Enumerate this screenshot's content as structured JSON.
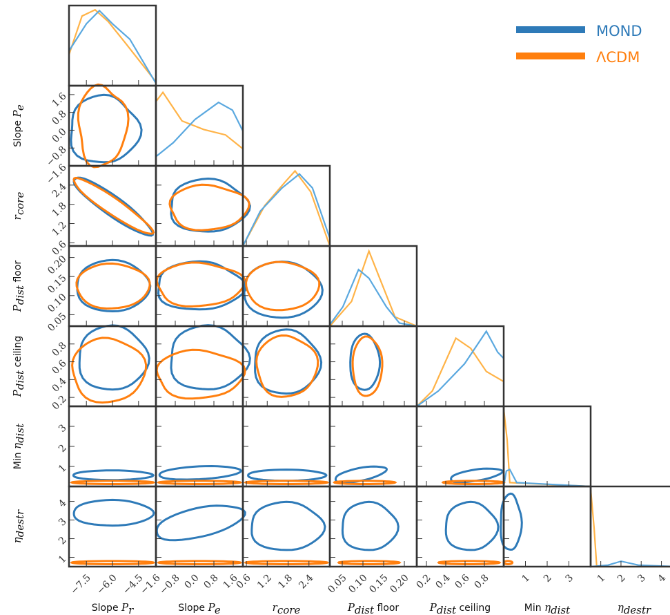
{
  "chart_data": {
    "type": "corner",
    "parameters": [
      {
        "key": "slope_pr",
        "label_sans": "Slope ",
        "label_math": "P",
        "label_sub": "r",
        "label_after": "",
        "ticks": [
          "−7.5",
          "−6.0",
          "−4.5"
        ],
        "tick_values": [
          -7.5,
          -6.0,
          -4.5
        ],
        "range": [
          -8.5,
          -3.5
        ]
      },
      {
        "key": "slope_pe",
        "label_sans": "Slope ",
        "label_math": "P",
        "label_sub": "e",
        "label_after": "",
        "ticks": [
          "−1.6",
          "−0.8",
          "0.0",
          "0.8",
          "1.6"
        ],
        "tick_values": [
          -1.6,
          -0.8,
          0.0,
          0.8,
          1.6
        ],
        "range": [
          -1.6,
          2.0
        ]
      },
      {
        "key": "r_core",
        "label_sans": "",
        "label_math": "r",
        "label_sub": "core",
        "label_after": "",
        "ticks": [
          "0.6",
          "1.2",
          "1.8",
          "2.4"
        ],
        "tick_values": [
          0.6,
          1.2,
          1.8,
          2.4
        ],
        "range": [
          0.5,
          3.0
        ]
      },
      {
        "key": "p_floor",
        "label_sans": "",
        "label_math": "P",
        "label_sub": "dist",
        "label_after": " floor",
        "ticks": [
          "0.05",
          "0.10",
          "0.15",
          "0.20"
        ],
        "tick_values": [
          0.05,
          0.1,
          0.15,
          0.2
        ],
        "range": [
          0.02,
          0.23
        ]
      },
      {
        "key": "p_ceiling",
        "label_sans": "",
        "label_math": "P",
        "label_sub": "dist",
        "label_after": " ceiling",
        "ticks": [
          "0.2",
          "0.4",
          "0.6",
          "0.8"
        ],
        "tick_values": [
          0.2,
          0.4,
          0.6,
          0.8
        ],
        "range": [
          0.1,
          1.0
        ]
      },
      {
        "key": "min_eta",
        "label_sans": "Min ",
        "label_math": "η",
        "label_sub": "dist",
        "label_after": "",
        "ticks": [
          "1",
          "2",
          "3"
        ],
        "tick_values": [
          1,
          2,
          3
        ],
        "range": [
          0.0,
          4.0
        ]
      },
      {
        "key": "eta_destr",
        "label_sans": "",
        "label_math": "η",
        "label_sub": "destr",
        "label_after": "",
        "ticks": [
          "1",
          "2",
          "3",
          "4"
        ],
        "tick_values": [
          1,
          2,
          3,
          4
        ],
        "range": [
          0.5,
          4.8
        ]
      }
    ],
    "y_tick_overrides": {
      "slope_pe": {
        "ticks": [
          "1.6",
          "0.8",
          "0.0",
          "−0.8",
          "−1.6"
        ],
        "tick_values": [
          1.6,
          0.8,
          0.0,
          -0.8,
          -1.6
        ]
      },
      "r_core": {
        "ticks": [
          "2.4",
          "1.8",
          "1.2",
          "0.6"
        ],
        "tick_values": [
          2.4,
          1.8,
          1.2,
          0.6
        ]
      },
      "p_floor": {
        "ticks": [
          "0.20",
          "0.15",
          "0.10",
          "0.05"
        ],
        "tick_values": [
          0.2,
          0.15,
          0.1,
          0.05
        ]
      },
      "p_ceiling": {
        "ticks": [
          "0.8",
          "0.6",
          "0.4",
          "0.2"
        ],
        "tick_values": [
          0.8,
          0.6,
          0.4,
          0.2
        ]
      },
      "min_eta": {
        "ticks": [
          "3",
          "2",
          "1"
        ],
        "tick_values": [
          3,
          2,
          1
        ]
      },
      "eta_destr": {
        "ticks": [
          "4",
          "3",
          "2",
          "1"
        ],
        "tick_values": [
          4,
          3,
          2,
          1
        ]
      }
    },
    "series": [
      {
        "name": "MOND",
        "color": "#2e7ab8",
        "diag_color": "#5aa8df"
      },
      {
        "name": "ΛCDM",
        "color": "#ff7f0e",
        "diag_color": "#ffb347"
      }
    ],
    "legend_position": "top-right"
  },
  "legend": {
    "items": [
      {
        "label": "MOND",
        "color": "#2e7ab8"
      },
      {
        "label": "ΛCDM",
        "color": "#ff7f0e"
      }
    ]
  }
}
